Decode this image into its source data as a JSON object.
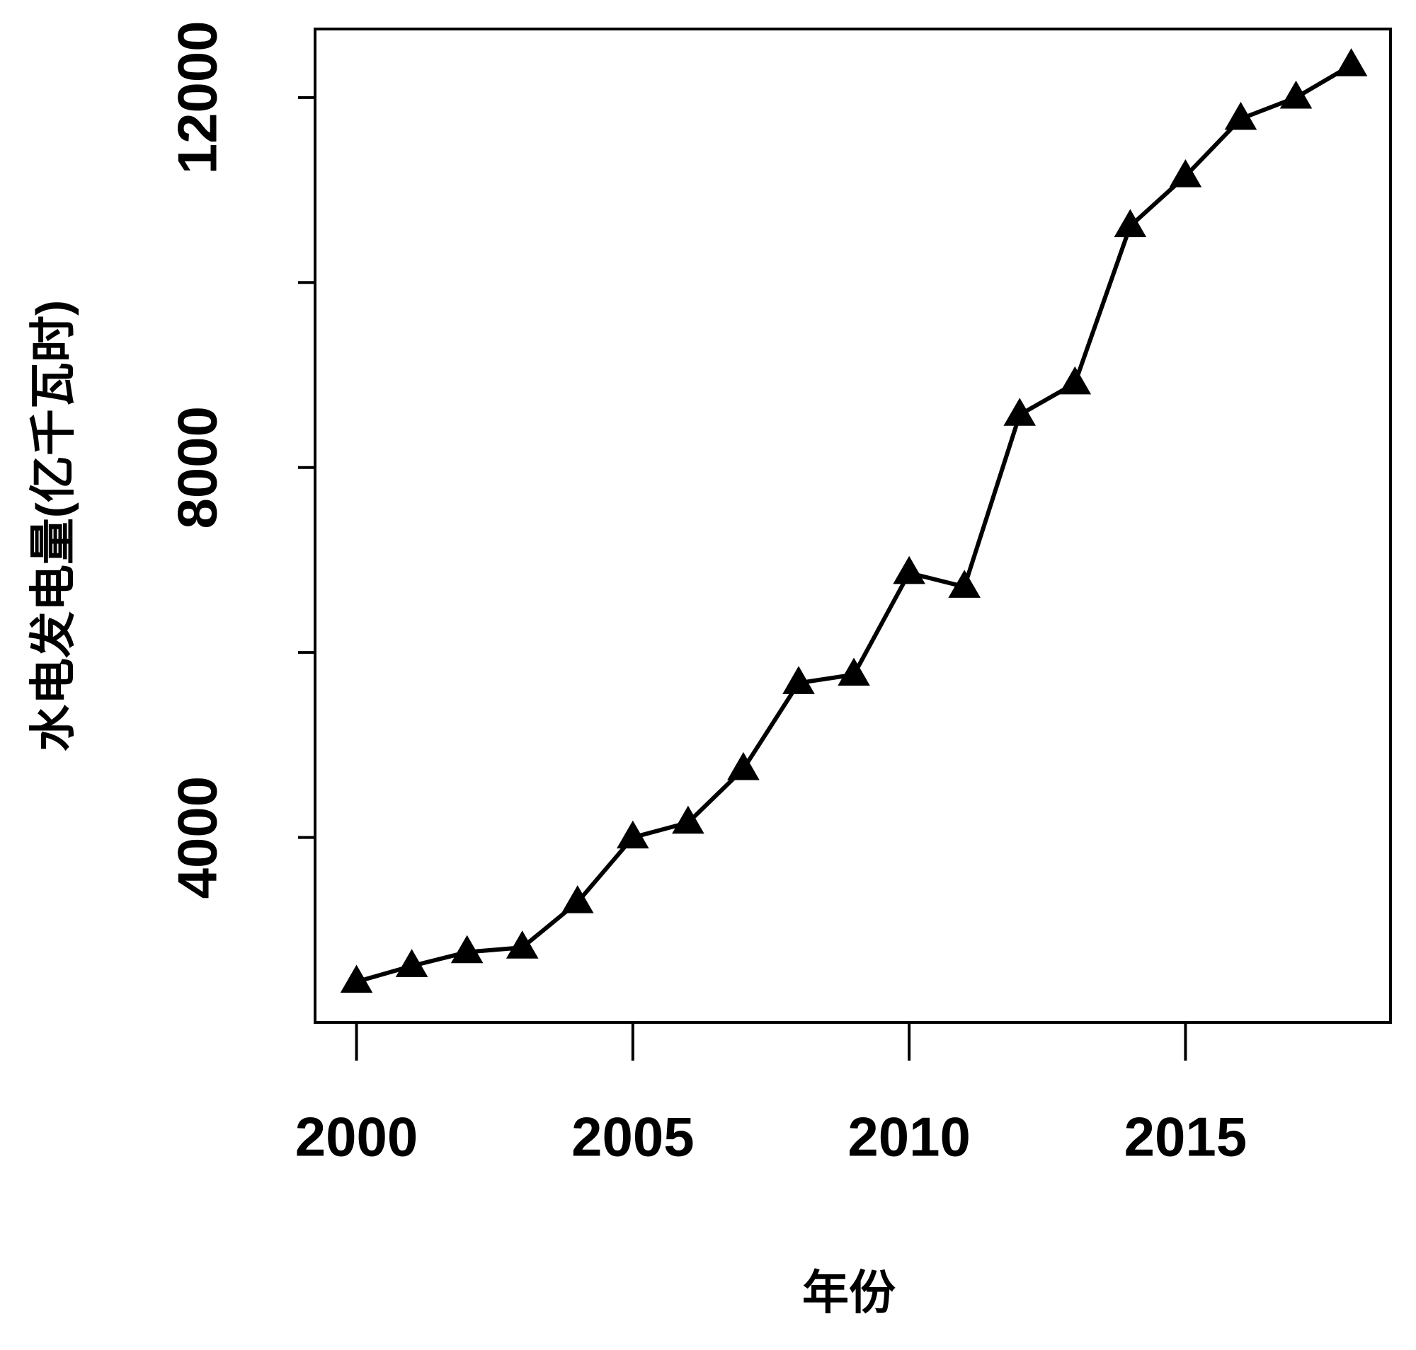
{
  "chart_data": {
    "type": "line",
    "x_label": "年份",
    "y_label": "水电发电量(亿千瓦时)",
    "x": [
      2000,
      2001,
      2002,
      2003,
      2004,
      2005,
      2006,
      2007,
      2008,
      2009,
      2010,
      2011,
      2012,
      2013,
      2014,
      2015,
      2016,
      2017,
      2018
    ],
    "series": [
      {
        "color": "#000000",
        "marker": "triangle",
        "values": [
          2440,
          2610,
          2760,
          2810,
          3300,
          4000,
          4160,
          4740,
          5670,
          5760,
          6860,
          6710,
          8570,
          8910,
          10610,
          11150,
          11770,
          12000,
          12350
        ]
      }
    ],
    "xlim": [
      1999.25,
      2018.71
    ],
    "ylim": [
      2000,
      12741
    ],
    "xticks": [
      2000,
      2005,
      2010,
      2015
    ],
    "yticks": [
      4000,
      {
        "value": 6000,
        "label": null
      },
      8000,
      {
        "value": 10000,
        "label": null
      },
      12000
    ],
    "grid": false
  }
}
